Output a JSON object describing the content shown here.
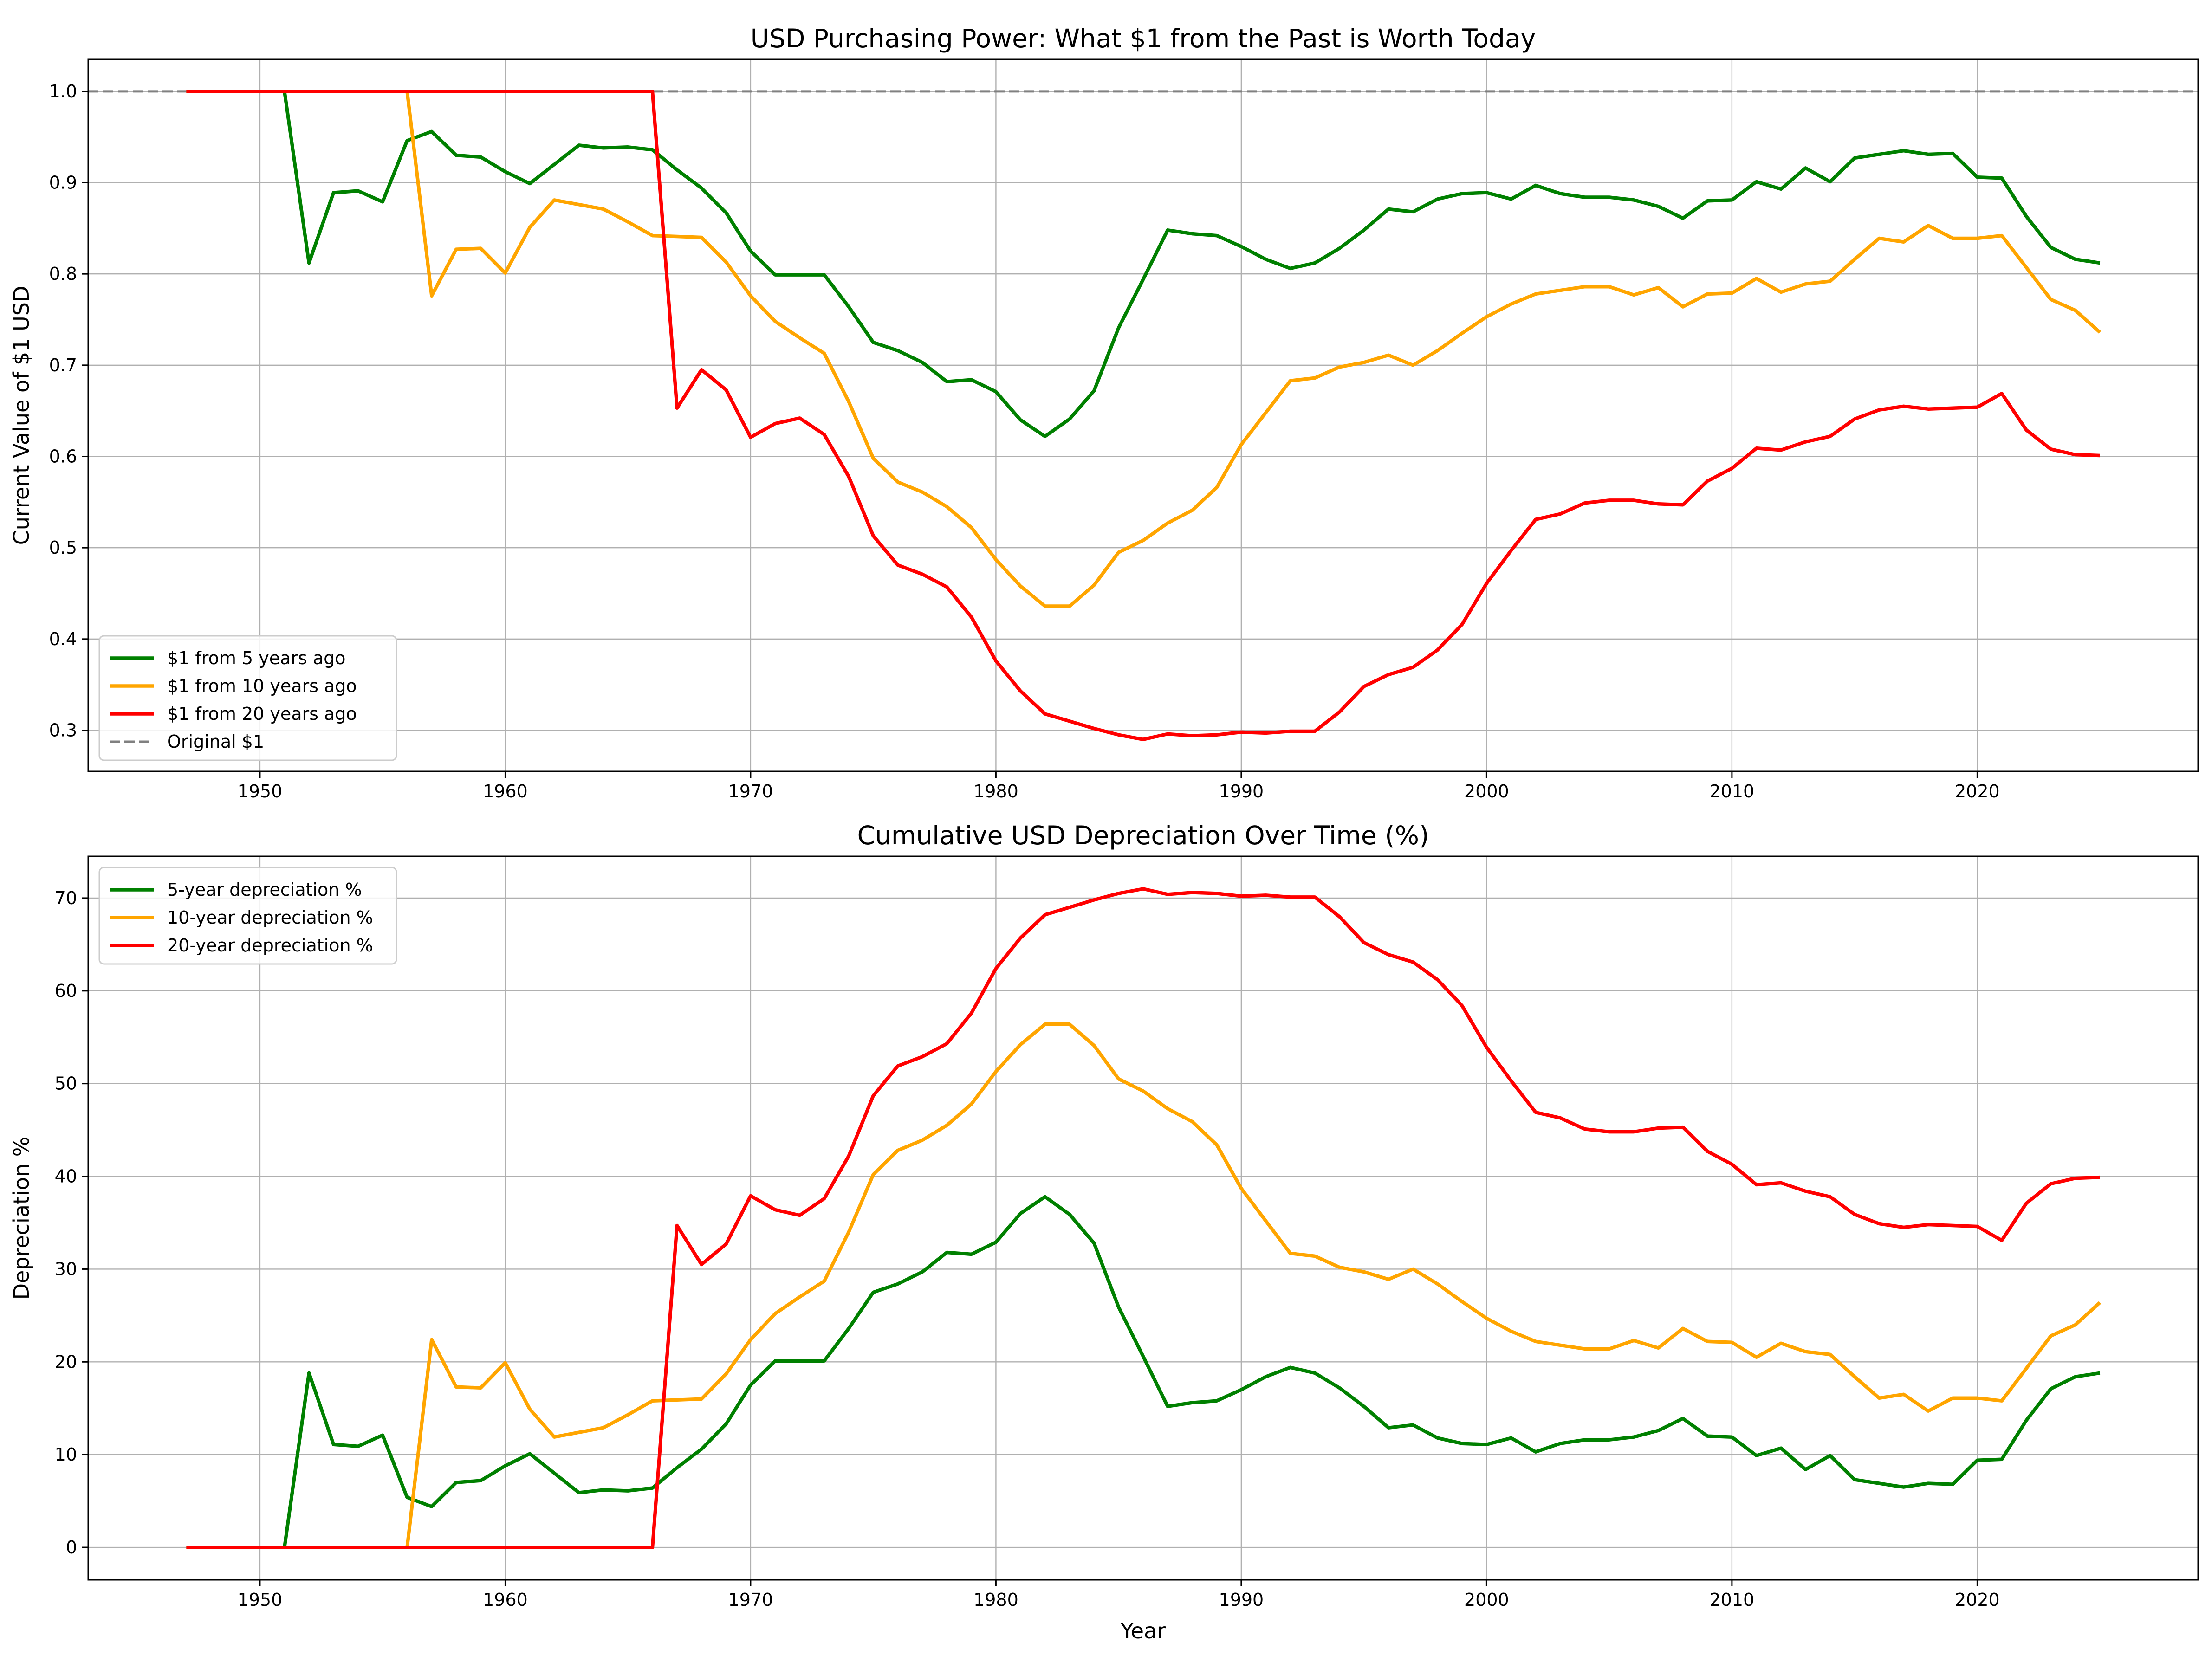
{
  "figure": {
    "background": "#ffffff"
  },
  "chart_data": [
    {
      "type": "line",
      "title": "USD Purchasing Power: What $1 from the Past is Worth Today",
      "xlabel": "",
      "ylabel": "Current Value of $1 USD",
      "xlim": [
        1943,
        2029
      ],
      "ylim": [
        0.255,
        1.035
      ],
      "xticks": [
        1950,
        1960,
        1970,
        1980,
        1990,
        2000,
        2010,
        2020
      ],
      "yticks": [
        0.3,
        0.4,
        0.5,
        0.6,
        0.7,
        0.8,
        0.9,
        1.0
      ],
      "ytick_labels": [
        "0.3",
        "0.4",
        "0.5",
        "0.6",
        "0.7",
        "0.8",
        "0.9",
        "1.0"
      ],
      "grid": true,
      "legend_position": "lower-left",
      "x": [
        1947,
        1948,
        1949,
        1950,
        1951,
        1952,
        1953,
        1954,
        1955,
        1956,
        1957,
        1958,
        1959,
        1960,
        1961,
        1962,
        1963,
        1964,
        1965,
        1966,
        1967,
        1968,
        1969,
        1970,
        1971,
        1972,
        1973,
        1974,
        1975,
        1976,
        1977,
        1978,
        1979,
        1980,
        1981,
        1982,
        1983,
        1984,
        1985,
        1986,
        1987,
        1988,
        1989,
        1990,
        1991,
        1992,
        1993,
        1994,
        1995,
        1996,
        1997,
        1998,
        1999,
        2000,
        2001,
        2002,
        2003,
        2004,
        2005,
        2006,
        2007,
        2008,
        2009,
        2010,
        2011,
        2012,
        2013,
        2014,
        2015,
        2016,
        2017,
        2018,
        2019,
        2020,
        2021,
        2022,
        2023,
        2024,
        2025
      ],
      "series": [
        {
          "name": "$1 from 5 years ago",
          "color": "#008000",
          "dash": "solid",
          "values": [
            1.0,
            1.0,
            1.0,
            1.0,
            1.0,
            0.812,
            0.889,
            0.891,
            0.879,
            0.946,
            0.956,
            0.93,
            0.928,
            0.912,
            0.899,
            0.92,
            0.941,
            0.938,
            0.939,
            0.936,
            0.914,
            0.894,
            0.867,
            0.825,
            0.799,
            0.799,
            0.799,
            0.764,
            0.725,
            0.716,
            0.703,
            0.682,
            0.684,
            0.671,
            0.64,
            0.622,
            0.641,
            0.672,
            0.741,
            0.794,
            0.848,
            0.844,
            0.842,
            0.83,
            0.816,
            0.806,
            0.812,
            0.828,
            0.848,
            0.871,
            0.868,
            0.882,
            0.888,
            0.889,
            0.882,
            0.897,
            0.888,
            0.884,
            0.884,
            0.881,
            0.874,
            0.861,
            0.88,
            0.881,
            0.901,
            0.893,
            0.916,
            0.901,
            0.927,
            0.931,
            0.935,
            0.931,
            0.932,
            0.906,
            0.905,
            0.863,
            0.829,
            0.816,
            0.812
          ]
        },
        {
          "name": "$1 from 10 years ago",
          "color": "#ffa500",
          "dash": "solid",
          "values": [
            1.0,
            1.0,
            1.0,
            1.0,
            1.0,
            1.0,
            1.0,
            1.0,
            1.0,
            1.0,
            0.776,
            0.827,
            0.828,
            0.801,
            0.851,
            0.881,
            0.876,
            0.871,
            0.857,
            0.842,
            0.841,
            0.84,
            0.813,
            0.776,
            0.748,
            0.73,
            0.713,
            0.66,
            0.598,
            0.572,
            0.561,
            0.545,
            0.522,
            0.487,
            0.458,
            0.436,
            0.436,
            0.459,
            0.495,
            0.508,
            0.527,
            0.541,
            0.566,
            0.613,
            0.648,
            0.683,
            0.686,
            0.698,
            0.703,
            0.711,
            0.7,
            0.716,
            0.735,
            0.753,
            0.767,
            0.778,
            0.782,
            0.786,
            0.786,
            0.777,
            0.785,
            0.764,
            0.778,
            0.779,
            0.795,
            0.78,
            0.789,
            0.792,
            0.816,
            0.839,
            0.835,
            0.853,
            0.839,
            0.839,
            0.842,
            0.807,
            0.772,
            0.76,
            0.736
          ]
        },
        {
          "name": "$1 from 20 years ago",
          "color": "#ff0000",
          "dash": "solid",
          "values": [
            1.0,
            1.0,
            1.0,
            1.0,
            1.0,
            1.0,
            1.0,
            1.0,
            1.0,
            1.0,
            1.0,
            1.0,
            1.0,
            1.0,
            1.0,
            1.0,
            1.0,
            1.0,
            1.0,
            1.0,
            0.653,
            0.695,
            0.673,
            0.621,
            0.636,
            0.642,
            0.624,
            0.578,
            0.513,
            0.481,
            0.471,
            0.457,
            0.424,
            0.376,
            0.343,
            0.318,
            0.31,
            0.302,
            0.295,
            0.29,
            0.296,
            0.294,
            0.295,
            0.298,
            0.297,
            0.299,
            0.299,
            0.32,
            0.348,
            0.361,
            0.369,
            0.388,
            0.416,
            0.461,
            0.497,
            0.531,
            0.537,
            0.549,
            0.552,
            0.552,
            0.548,
            0.547,
            0.573,
            0.587,
            0.609,
            0.607,
            0.616,
            0.622,
            0.641,
            0.651,
            0.655,
            0.652,
            0.653,
            0.654,
            0.669,
            0.629,
            0.608,
            0.602,
            0.601
          ]
        }
      ],
      "reference_line": {
        "name": "Original $1",
        "value": 1.0,
        "color": "#808080",
        "dash": "dashed"
      }
    },
    {
      "type": "line",
      "title": "Cumulative USD Depreciation Over Time (%)",
      "xlabel": "Year",
      "ylabel": "Depreciation %",
      "xlim": [
        1943,
        2029
      ],
      "ylim": [
        -3.5,
        74.5
      ],
      "xticks": [
        1950,
        1960,
        1970,
        1980,
        1990,
        2000,
        2010,
        2020
      ],
      "yticks": [
        0,
        10,
        20,
        30,
        40,
        50,
        60,
        70
      ],
      "ytick_labels": [
        "0",
        "10",
        "20",
        "30",
        "40",
        "50",
        "60",
        "70"
      ],
      "grid": true,
      "legend_position": "upper-left",
      "x": [
        1947,
        1948,
        1949,
        1950,
        1951,
        1952,
        1953,
        1954,
        1955,
        1956,
        1957,
        1958,
        1959,
        1960,
        1961,
        1962,
        1963,
        1964,
        1965,
        1966,
        1967,
        1968,
        1969,
        1970,
        1971,
        1972,
        1973,
        1974,
        1975,
        1976,
        1977,
        1978,
        1979,
        1980,
        1981,
        1982,
        1983,
        1984,
        1985,
        1986,
        1987,
        1988,
        1989,
        1990,
        1991,
        1992,
        1993,
        1994,
        1995,
        1996,
        1997,
        1998,
        1999,
        2000,
        2001,
        2002,
        2003,
        2004,
        2005,
        2006,
        2007,
        2008,
        2009,
        2010,
        2011,
        2012,
        2013,
        2014,
        2015,
        2016,
        2017,
        2018,
        2019,
        2020,
        2021,
        2022,
        2023,
        2024,
        2025
      ],
      "series": [
        {
          "name": "5-year depreciation %",
          "color": "#008000",
          "dash": "solid",
          "values": [
            0,
            0,
            0,
            0,
            0,
            18.8,
            11.1,
            10.9,
            12.1,
            5.4,
            4.4,
            7.0,
            7.2,
            8.8,
            10.1,
            8.0,
            5.9,
            6.2,
            6.1,
            6.4,
            8.6,
            10.6,
            13.3,
            17.5,
            20.1,
            20.1,
            20.1,
            23.6,
            27.5,
            28.4,
            29.7,
            31.8,
            31.6,
            32.9,
            36.0,
            37.8,
            35.9,
            32.8,
            25.9,
            20.6,
            15.2,
            15.6,
            15.8,
            17.0,
            18.4,
            19.4,
            18.8,
            17.2,
            15.2,
            12.9,
            13.2,
            11.8,
            11.2,
            11.1,
            11.8,
            10.3,
            11.2,
            11.6,
            11.6,
            11.9,
            12.6,
            13.9,
            12.0,
            11.9,
            9.9,
            10.7,
            8.4,
            9.9,
            7.3,
            6.9,
            6.5,
            6.9,
            6.8,
            9.4,
            9.5,
            13.7,
            17.1,
            18.4,
            18.8
          ]
        },
        {
          "name": "10-year depreciation %",
          "color": "#ffa500",
          "dash": "solid",
          "values": [
            0,
            0,
            0,
            0,
            0,
            0,
            0,
            0,
            0,
            0,
            22.4,
            17.3,
            17.2,
            19.9,
            14.9,
            11.9,
            12.4,
            12.9,
            14.3,
            15.8,
            15.9,
            16.0,
            18.7,
            22.4,
            25.2,
            27.0,
            28.7,
            34.0,
            40.2,
            42.8,
            43.9,
            45.5,
            47.8,
            51.3,
            54.2,
            56.4,
            56.4,
            54.1,
            50.5,
            49.2,
            47.3,
            45.9,
            43.4,
            38.7,
            35.2,
            31.7,
            31.4,
            30.2,
            29.7,
            28.9,
            30.0,
            28.4,
            26.5,
            24.7,
            23.3,
            22.2,
            21.8,
            21.4,
            21.4,
            22.3,
            21.5,
            23.6,
            22.2,
            22.1,
            20.5,
            22.0,
            21.1,
            20.8,
            18.4,
            16.1,
            16.5,
            14.7,
            16.1,
            16.1,
            15.8,
            19.3,
            22.8,
            24.0,
            26.4
          ]
        },
        {
          "name": "20-year depreciation %",
          "color": "#ff0000",
          "dash": "solid",
          "values": [
            0,
            0,
            0,
            0,
            0,
            0,
            0,
            0,
            0,
            0,
            0,
            0,
            0,
            0,
            0,
            0,
            0,
            0,
            0,
            0,
            34.7,
            30.5,
            32.7,
            37.9,
            36.4,
            35.8,
            37.6,
            42.2,
            48.7,
            51.9,
            52.9,
            54.3,
            57.6,
            62.4,
            65.7,
            68.2,
            69.0,
            69.8,
            70.5,
            71.0,
            70.4,
            70.6,
            70.5,
            70.2,
            70.3,
            70.1,
            70.1,
            68.0,
            65.2,
            63.9,
            63.1,
            61.2,
            58.4,
            53.9,
            50.3,
            46.9,
            46.3,
            45.1,
            44.8,
            44.8,
            45.2,
            45.3,
            42.7,
            41.3,
            39.1,
            39.3,
            38.4,
            37.8,
            35.9,
            34.9,
            34.5,
            34.8,
            34.7,
            34.6,
            33.1,
            37.1,
            39.2,
            39.8,
            39.9
          ]
        }
      ]
    }
  ]
}
